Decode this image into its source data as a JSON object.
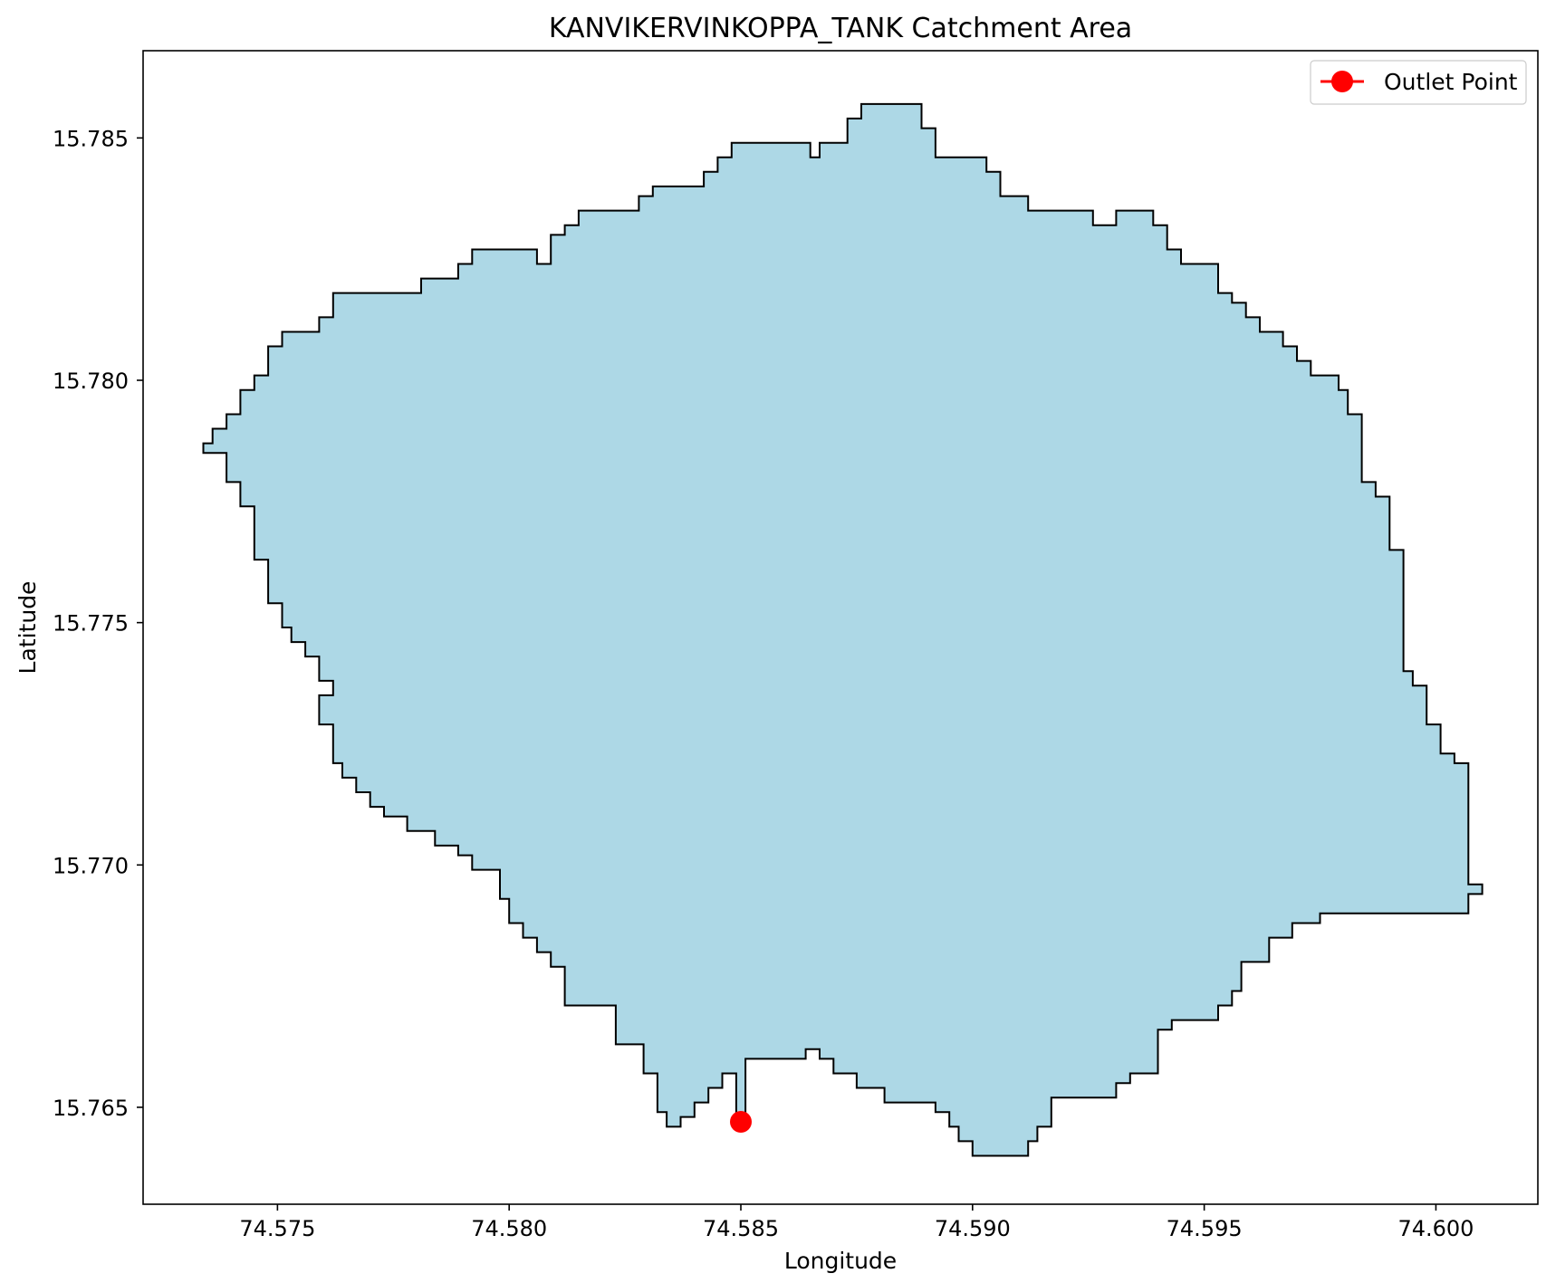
{
  "title": "KANVIKERVINKOPPA_TANK Catchment Area",
  "xlabel": "Longitude",
  "ylabel": "Latitude",
  "legend": {
    "label": "Outlet Point",
    "placement": "top-right"
  },
  "colors": {
    "fill": "#add8e6",
    "edge": "#000000",
    "outlet": "#ff0000",
    "axes": "#000000"
  },
  "chart_data": {
    "type": "map",
    "xlim": [
      74.5721,
      74.6022
    ],
    "ylim": [
      15.763,
      15.7868
    ],
    "xticks": [
      {
        "value": 74.575,
        "label": "74.575"
      },
      {
        "value": 74.58,
        "label": "74.580"
      },
      {
        "value": 74.585,
        "label": "74.585"
      },
      {
        "value": 74.59,
        "label": "74.590"
      },
      {
        "value": 74.595,
        "label": "74.595"
      },
      {
        "value": 74.6,
        "label": "74.600"
      }
    ],
    "yticks": [
      {
        "value": 15.765,
        "label": "15.765"
      },
      {
        "value": 15.77,
        "label": "15.770"
      },
      {
        "value": 15.775,
        "label": "15.775"
      },
      {
        "value": 15.78,
        "label": "15.780"
      },
      {
        "value": 15.785,
        "label": "15.785"
      }
    ],
    "outlet": {
      "lon": 74.585,
      "lat": 15.7647
    },
    "catchment_boundary": [
      [
        74.5734,
        15.7787
      ],
      [
        74.5736,
        15.7787
      ],
      [
        74.5736,
        15.779
      ],
      [
        74.5739,
        15.779
      ],
      [
        74.5739,
        15.7793
      ],
      [
        74.5742,
        15.7793
      ],
      [
        74.5742,
        15.7798
      ],
      [
        74.5745,
        15.7798
      ],
      [
        74.5745,
        15.7801
      ],
      [
        74.5748,
        15.7801
      ],
      [
        74.5748,
        15.7807
      ],
      [
        74.5751,
        15.7807
      ],
      [
        74.5751,
        15.781
      ],
      [
        74.5759,
        15.781
      ],
      [
        74.5759,
        15.7813
      ],
      [
        74.5762,
        15.7813
      ],
      [
        74.5762,
        15.7818
      ],
      [
        74.5781,
        15.7818
      ],
      [
        74.5781,
        15.7821
      ],
      [
        74.5789,
        15.7821
      ],
      [
        74.5789,
        15.7824
      ],
      [
        74.5792,
        15.7824
      ],
      [
        74.5792,
        15.7827
      ],
      [
        74.5806,
        15.7827
      ],
      [
        74.5806,
        15.7824
      ],
      [
        74.5809,
        15.7824
      ],
      [
        74.5809,
        15.783
      ],
      [
        74.5812,
        15.783
      ],
      [
        74.5812,
        15.7832
      ],
      [
        74.5815,
        15.7832
      ],
      [
        74.5815,
        15.7835
      ],
      [
        74.5828,
        15.7835
      ],
      [
        74.5828,
        15.7838
      ],
      [
        74.5831,
        15.7838
      ],
      [
        74.5831,
        15.784
      ],
      [
        74.5842,
        15.784
      ],
      [
        74.5842,
        15.7843
      ],
      [
        74.5845,
        15.7843
      ],
      [
        74.5845,
        15.7846
      ],
      [
        74.5848,
        15.7846
      ],
      [
        74.5848,
        15.7849
      ],
      [
        74.5865,
        15.7849
      ],
      [
        74.5865,
        15.7846
      ],
      [
        74.5867,
        15.7846
      ],
      [
        74.5867,
        15.7849
      ],
      [
        74.5873,
        15.7849
      ],
      [
        74.5873,
        15.7854
      ],
      [
        74.5876,
        15.7854
      ],
      [
        74.5876,
        15.7857
      ],
      [
        74.5889,
        15.7857
      ],
      [
        74.5889,
        15.7852
      ],
      [
        74.5892,
        15.7852
      ],
      [
        74.5892,
        15.7846
      ],
      [
        74.5903,
        15.7846
      ],
      [
        74.5903,
        15.7843
      ],
      [
        74.5906,
        15.7843
      ],
      [
        74.5906,
        15.7838
      ],
      [
        74.5912,
        15.7838
      ],
      [
        74.5912,
        15.7835
      ],
      [
        74.5926,
        15.7835
      ],
      [
        74.5926,
        15.7832
      ],
      [
        74.5931,
        15.7832
      ],
      [
        74.5931,
        15.7835
      ],
      [
        74.5939,
        15.7835
      ],
      [
        74.5939,
        15.7832
      ],
      [
        74.5942,
        15.7832
      ],
      [
        74.5942,
        15.7827
      ],
      [
        74.5945,
        15.7827
      ],
      [
        74.5945,
        15.7824
      ],
      [
        74.5953,
        15.7824
      ],
      [
        74.5953,
        15.7818
      ],
      [
        74.5956,
        15.7818
      ],
      [
        74.5956,
        15.7816
      ],
      [
        74.5959,
        15.7816
      ],
      [
        74.5959,
        15.7813
      ],
      [
        74.5962,
        15.7813
      ],
      [
        74.5962,
        15.781
      ],
      [
        74.5967,
        15.781
      ],
      [
        74.5967,
        15.7807
      ],
      [
        74.597,
        15.7807
      ],
      [
        74.597,
        15.7804
      ],
      [
        74.5973,
        15.7804
      ],
      [
        74.5973,
        15.7801
      ],
      [
        74.5979,
        15.7801
      ],
      [
        74.5979,
        15.7798
      ],
      [
        74.5981,
        15.7798
      ],
      [
        74.5981,
        15.7793
      ],
      [
        74.5984,
        15.7793
      ],
      [
        74.5984,
        15.7779
      ],
      [
        74.5987,
        15.7779
      ],
      [
        74.5987,
        15.7776
      ],
      [
        74.599,
        15.7776
      ],
      [
        74.599,
        15.7765
      ],
      [
        74.5993,
        15.7765
      ],
      [
        74.5993,
        15.774
      ],
      [
        74.5995,
        15.774
      ],
      [
        74.5995,
        15.7737
      ],
      [
        74.5998,
        15.7737
      ],
      [
        74.5998,
        15.7729
      ],
      [
        74.6001,
        15.7729
      ],
      [
        74.6001,
        15.7723
      ],
      [
        74.6004,
        15.7723
      ],
      [
        74.6004,
        15.7721
      ],
      [
        74.6007,
        15.7721
      ],
      [
        74.6007,
        15.7696
      ],
      [
        74.601,
        15.7696
      ],
      [
        74.601,
        15.7694
      ],
      [
        74.6007,
        15.7694
      ],
      [
        74.6007,
        15.769
      ],
      [
        74.5975,
        15.769
      ],
      [
        74.5975,
        15.7688
      ],
      [
        74.5969,
        15.7688
      ],
      [
        74.5969,
        15.7685
      ],
      [
        74.5964,
        15.7685
      ],
      [
        74.5964,
        15.768
      ],
      [
        74.5958,
        15.768
      ],
      [
        74.5958,
        15.7674
      ],
      [
        74.5956,
        15.7674
      ],
      [
        74.5956,
        15.7671
      ],
      [
        74.5953,
        15.7671
      ],
      [
        74.5953,
        15.7668
      ],
      [
        74.5943,
        15.7668
      ],
      [
        74.5943,
        15.7666
      ],
      [
        74.594,
        15.7666
      ],
      [
        74.594,
        15.7657
      ],
      [
        74.5934,
        15.7657
      ],
      [
        74.5934,
        15.7655
      ],
      [
        74.5931,
        15.7655
      ],
      [
        74.5931,
        15.7652
      ],
      [
        74.5917,
        15.7652
      ],
      [
        74.5917,
        15.7646
      ],
      [
        74.5914,
        15.7646
      ],
      [
        74.5914,
        15.7643
      ],
      [
        74.5912,
        15.7643
      ],
      [
        74.5912,
        15.764
      ],
      [
        74.59,
        15.764
      ],
      [
        74.59,
        15.7643
      ],
      [
        74.5897,
        15.7643
      ],
      [
        74.5897,
        15.7646
      ],
      [
        74.5895,
        15.7646
      ],
      [
        74.5895,
        15.7649
      ],
      [
        74.5892,
        15.7649
      ],
      [
        74.5892,
        15.7651
      ],
      [
        74.5881,
        15.7651
      ],
      [
        74.5881,
        15.7654
      ],
      [
        74.5875,
        15.7654
      ],
      [
        74.5875,
        15.7657
      ],
      [
        74.587,
        15.7657
      ],
      [
        74.587,
        15.766
      ],
      [
        74.5867,
        15.766
      ],
      [
        74.5867,
        15.7662
      ],
      [
        74.5864,
        15.7662
      ],
      [
        74.5864,
        15.766
      ],
      [
        74.5851,
        15.766
      ],
      [
        74.5851,
        15.7648
      ],
      [
        74.5849,
        15.7648
      ],
      [
        74.5849,
        15.7657
      ],
      [
        74.5846,
        15.7657
      ],
      [
        74.5846,
        15.7654
      ],
      [
        74.5843,
        15.7654
      ],
      [
        74.5843,
        15.7651
      ],
      [
        74.584,
        15.7651
      ],
      [
        74.584,
        15.7648
      ],
      [
        74.5837,
        15.7648
      ],
      [
        74.5837,
        15.7646
      ],
      [
        74.5834,
        15.7646
      ],
      [
        74.5834,
        15.7649
      ],
      [
        74.5832,
        15.7649
      ],
      [
        74.5832,
        15.7657
      ],
      [
        74.5829,
        15.7657
      ],
      [
        74.5829,
        15.7663
      ],
      [
        74.5823,
        15.7663
      ],
      [
        74.5823,
        15.7666
      ],
      [
        74.5823,
        15.7671
      ],
      [
        74.5812,
        15.7671
      ],
      [
        74.5812,
        15.7679
      ],
      [
        74.5809,
        15.7679
      ],
      [
        74.5809,
        15.7682
      ],
      [
        74.5806,
        15.7682
      ],
      [
        74.5806,
        15.7685
      ],
      [
        74.5803,
        15.7685
      ],
      [
        74.5803,
        15.7688
      ],
      [
        74.58,
        15.7688
      ],
      [
        74.58,
        15.7693
      ],
      [
        74.5798,
        15.7693
      ],
      [
        74.5798,
        15.7699
      ],
      [
        74.5792,
        15.7699
      ],
      [
        74.5792,
        15.7702
      ],
      [
        74.5789,
        15.7702
      ],
      [
        74.5789,
        15.7704
      ],
      [
        74.5784,
        15.7704
      ],
      [
        74.5784,
        15.7707
      ],
      [
        74.5778,
        15.7707
      ],
      [
        74.5778,
        15.771
      ],
      [
        74.5773,
        15.771
      ],
      [
        74.5773,
        15.7712
      ],
      [
        74.577,
        15.7712
      ],
      [
        74.577,
        15.7715
      ],
      [
        74.5767,
        15.7715
      ],
      [
        74.5767,
        15.7718
      ],
      [
        74.5764,
        15.7718
      ],
      [
        74.5764,
        15.7721
      ],
      [
        74.5762,
        15.7721
      ],
      [
        74.5762,
        15.7729
      ],
      [
        74.5759,
        15.7729
      ],
      [
        74.5759,
        15.7735
      ],
      [
        74.5762,
        15.7735
      ],
      [
        74.5762,
        15.7738
      ],
      [
        74.5759,
        15.7738
      ],
      [
        74.5759,
        15.7743
      ],
      [
        74.5756,
        15.7743
      ],
      [
        74.5756,
        15.7746
      ],
      [
        74.5753,
        15.7746
      ],
      [
        74.5753,
        15.7749
      ],
      [
        74.5751,
        15.7749
      ],
      [
        74.5751,
        15.7754
      ],
      [
        74.5748,
        15.7754
      ],
      [
        74.5748,
        15.7763
      ],
      [
        74.5745,
        15.7763
      ],
      [
        74.5745,
        15.7774
      ],
      [
        74.5742,
        15.7774
      ],
      [
        74.5742,
        15.7779
      ],
      [
        74.5739,
        15.7779
      ],
      [
        74.5739,
        15.7785
      ],
      [
        74.5734,
        15.7785
      ]
    ]
  }
}
